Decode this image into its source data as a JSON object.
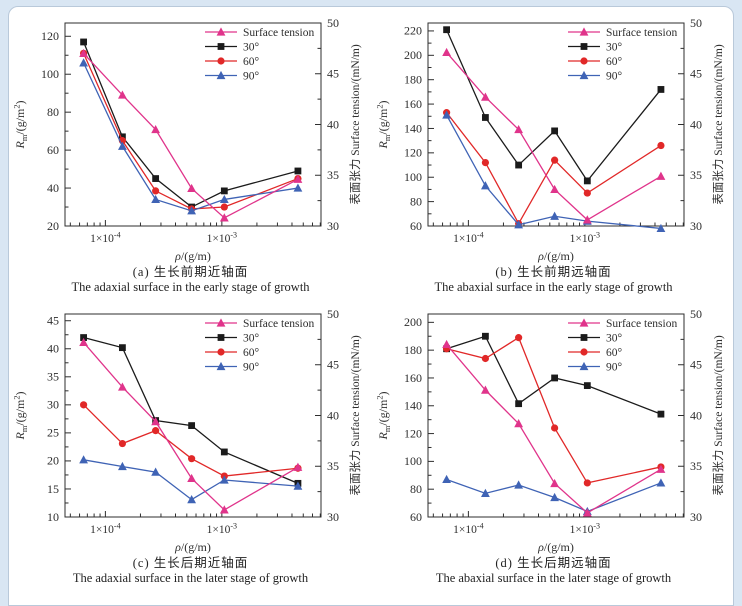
{
  "page": {
    "background_color": "#d9e6f3",
    "panel_background": "#ffffff",
    "panel_border": "#b9c9da"
  },
  "chart_data": [
    {
      "id": "a",
      "type": "line",
      "caption_zh": "(a) 生长前期近轴面",
      "caption_en": "The adaxial surface in the early stage of growth",
      "xlabel": "*ρ*/(g/m)",
      "ylabel_left": "*R*_{m}/(g/m^{2})",
      "ylabel_right": "表面张力 Surface tension/(mN/m)",
      "x_scale": "log",
      "xlim": [
        4.5e-05,
        0.0071
      ],
      "x_ticks": [
        {
          "v": 0.0001,
          "label": "1×10^{-4}"
        },
        {
          "v": 0.001,
          "label": "1×10^{-3}"
        }
      ],
      "ylim_left": [
        20,
        127
      ],
      "ytick_left": {
        "min": 20,
        "max": 120,
        "major": 20,
        "minor": 10
      },
      "ylim_right": [
        30,
        50
      ],
      "ytick_right": {
        "min": 30,
        "max": 50,
        "major": 5,
        "minor": 2.5
      },
      "x": [
        6.5e-05,
        0.00014,
        0.00027,
        0.00055,
        0.00105,
        0.0045
      ],
      "series": [
        {
          "name": "Surface tension",
          "axis": "right",
          "color": "#e0348b",
          "marker": "triangle",
          "values": [
            47.0,
            42.9,
            39.5,
            33.7,
            30.8,
            34.6
          ]
        },
        {
          "name": "30°",
          "axis": "left",
          "color": "#1b1b1b",
          "marker": "square",
          "values": [
            117,
            67,
            45,
            30,
            38.5,
            49
          ]
        },
        {
          "name": "60°",
          "axis": "left",
          "color": "#e12828",
          "marker": "circle",
          "values": [
            111,
            65,
            38.5,
            29,
            30,
            45
          ]
        },
        {
          "name": "90°",
          "axis": "left",
          "color": "#3f63b5",
          "marker": "triangle",
          "values": [
            106,
            62,
            34,
            28,
            34,
            40
          ]
        }
      ]
    },
    {
      "id": "b",
      "type": "line",
      "caption_zh": "(b) 生长前期远轴面",
      "caption_en": "The abaxial surface in the early stage of growth",
      "xlabel": "*ρ*/(g/m)",
      "ylabel_left": "*R*_{m}/(g/m^{2})",
      "ylabel_right": "表面张力 Surface tension/(mN/m)",
      "x_scale": "log",
      "xlim": [
        4.5e-05,
        0.0071
      ],
      "x_ticks": [
        {
          "v": 0.0001,
          "label": "1×10^{-4}"
        },
        {
          "v": 0.001,
          "label": "1×10^{-3}"
        }
      ],
      "ylim_left": [
        60,
        226.5
      ],
      "ytick_left": {
        "min": 60,
        "max": 220,
        "major": 20,
        "minor": 10
      },
      "ylim_right": [
        30,
        50
      ],
      "ytick_right": {
        "min": 30,
        "max": 50,
        "major": 5,
        "minor": 2.5
      },
      "x": [
        6.5e-05,
        0.00014,
        0.00027,
        0.00055,
        0.00105,
        0.0045
      ],
      "series": [
        {
          "name": "Surface tension",
          "axis": "right",
          "color": "#e0348b",
          "marker": "triangle",
          "values": [
            47.1,
            42.7,
            39.5,
            33.6,
            30.6,
            34.9
          ]
        },
        {
          "name": "30°",
          "axis": "left",
          "color": "#1b1b1b",
          "marker": "square",
          "values": [
            221,
            149,
            110,
            138,
            97,
            172
          ]
        },
        {
          "name": "60°",
          "axis": "left",
          "color": "#e12828",
          "marker": "circle",
          "values": [
            153,
            112,
            62,
            114,
            87,
            126
          ]
        },
        {
          "name": "90°",
          "axis": "left",
          "color": "#3f63b5",
          "marker": "triangle",
          "values": [
            151,
            93,
            61,
            68,
            64,
            58
          ]
        }
      ]
    },
    {
      "id": "c",
      "type": "line",
      "caption_zh": "(c) 生长后期近轴面",
      "caption_en": "The adaxial surface in the later stage of growth",
      "xlabel": "*ρ*/(g/m)",
      "ylabel_left": "*R*_{m}/(g/m^{2})",
      "ylabel_right": "表面张力 Surface tension/(mN/m)",
      "x_scale": "log",
      "xlim": [
        4.5e-05,
        0.0071
      ],
      "x_ticks": [
        {
          "v": 0.0001,
          "label": "1×10^{-4}"
        },
        {
          "v": 0.001,
          "label": "1×10^{-3}"
        }
      ],
      "ylim_left": [
        10,
        46.2
      ],
      "ytick_left": {
        "min": 10,
        "max": 45,
        "major": 5,
        "minor": 2.5
      },
      "ylim_right": [
        30,
        50
      ],
      "ytick_right": {
        "min": 30,
        "max": 50,
        "major": 5,
        "minor": 2.5
      },
      "x": [
        6.5e-05,
        0.00014,
        0.00027,
        0.00055,
        0.00105,
        0.0045
      ],
      "series": [
        {
          "name": "Surface tension",
          "axis": "right",
          "color": "#e0348b",
          "marker": "triangle",
          "values": [
            47.2,
            42.8,
            39.4,
            33.8,
            30.7,
            34.9
          ]
        },
        {
          "name": "30°",
          "axis": "left",
          "color": "#1b1b1b",
          "marker": "square",
          "values": [
            42,
            40.2,
            27.2,
            26.3,
            21.6,
            16
          ]
        },
        {
          "name": "60°",
          "axis": "left",
          "color": "#e12828",
          "marker": "circle",
          "values": [
            30,
            23.1,
            25.4,
            20.4,
            17.3,
            18.7
          ]
        },
        {
          "name": "90°",
          "axis": "left",
          "color": "#3f63b5",
          "marker": "triangle",
          "values": [
            20.2,
            19,
            18,
            13.1,
            16.6,
            15.5
          ]
        }
      ]
    },
    {
      "id": "d",
      "type": "line",
      "caption_zh": "(d) 生长后期远轴面",
      "caption_en": "The abaxial surface in the later stage of growth",
      "xlabel": "*ρ*/(g/m)",
      "ylabel_left": "*R*_{m}/(g/m^{2})",
      "ylabel_right": "表面张力 Surface tension/(mN/m)",
      "x_scale": "log",
      "xlim": [
        4.5e-05,
        0.0071
      ],
      "x_ticks": [
        {
          "v": 0.0001,
          "label": "1×10^{-4}"
        },
        {
          "v": 0.001,
          "label": "1×10^{-3}"
        }
      ],
      "ylim_left": [
        60,
        206
      ],
      "ytick_left": {
        "min": 60,
        "max": 200,
        "major": 20,
        "minor": 10
      },
      "ylim_right": [
        30,
        50
      ],
      "ytick_right": {
        "min": 30,
        "max": 50,
        "major": 5,
        "minor": 2.5
      },
      "x": [
        6.5e-05,
        0.00014,
        0.00027,
        0.00055,
        0.00105,
        0.0045
      ],
      "series": [
        {
          "name": "Surface tension",
          "axis": "right",
          "color": "#e0348b",
          "marker": "triangle",
          "values": [
            47.0,
            42.5,
            39.2,
            33.3,
            30.4,
            34.7
          ]
        },
        {
          "name": "30°",
          "axis": "left",
          "color": "#1b1b1b",
          "marker": "square",
          "values": [
            181,
            190,
            141.5,
            160,
            154.5,
            134
          ]
        },
        {
          "name": "60°",
          "axis": "left",
          "color": "#e12828",
          "marker": "circle",
          "values": [
            181,
            174,
            189,
            124,
            84.5,
            96
          ]
        },
        {
          "name": "90°",
          "axis": "left",
          "color": "#3f63b5",
          "marker": "triangle",
          "values": [
            87,
            77,
            83,
            74,
            64,
            84.5
          ]
        }
      ]
    }
  ]
}
